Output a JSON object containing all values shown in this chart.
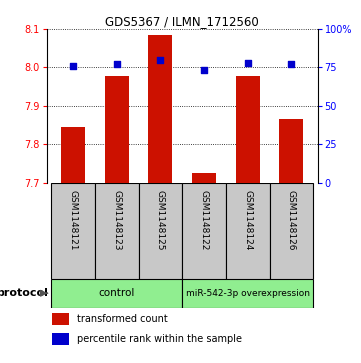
{
  "title": "GDS5367 / ILMN_1712560",
  "samples": [
    "GSM1148121",
    "GSM1148123",
    "GSM1148125",
    "GSM1148122",
    "GSM1148124",
    "GSM1148126"
  ],
  "bar_values": [
    7.845,
    7.978,
    8.085,
    7.725,
    7.978,
    7.865
  ],
  "percentile_values": [
    76,
    77,
    80,
    73,
    78,
    77
  ],
  "bar_color": "#cc1100",
  "dot_color": "#0000cc",
  "ylim_left": [
    7.7,
    8.1
  ],
  "ylim_right": [
    0,
    100
  ],
  "yticks_left": [
    7.7,
    7.8,
    7.9,
    8.0,
    8.1
  ],
  "yticks_right": [
    0,
    25,
    50,
    75,
    100
  ],
  "protocol_label": "protocol",
  "legend_items": [
    {
      "color": "#cc1100",
      "label": "transformed count"
    },
    {
      "color": "#0000cc",
      "label": "percentile rank within the sample"
    }
  ],
  "bar_width": 0.55,
  "figsize": [
    3.61,
    3.63
  ],
  "dpi": 100,
  "bg_label_color": "#c8c8c8",
  "bg_protocol_color": "#90ee90"
}
